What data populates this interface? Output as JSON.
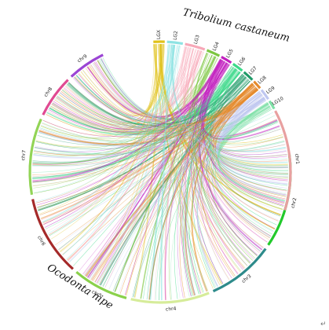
{
  "species": {
    "top": "Tribolium castaneum",
    "bottom": "Ocodonta nipe"
  },
  "segments": [
    {
      "name": "chr9",
      "color": "#9b45d4"
    },
    {
      "name": "chr8",
      "color": "#e04a92"
    },
    {
      "name": "chr7",
      "color": "#92d456"
    },
    {
      "name": "chr6",
      "color": "#a52a2a"
    },
    {
      "name": "chr5",
      "color": "#8ad14b"
    },
    {
      "name": "chr4",
      "color": "#d6ec9a"
    },
    {
      "name": "chr3",
      "color": "#2e8b8b"
    },
    {
      "name": "chr2",
      "color": "#22c92c"
    },
    {
      "name": "chr1",
      "color": "#e8a0a0"
    },
    {
      "name": "LG10",
      "color": "#7de0a6"
    },
    {
      "name": "LG9",
      "color": "#bfc7f0"
    },
    {
      "name": "LG8",
      "color": "#e58a2c"
    },
    {
      "name": "LG7",
      "color": "#1f9a68"
    },
    {
      "name": "LG6",
      "color": "#3cd98a"
    },
    {
      "name": "LG5",
      "color": "#c21fbf"
    },
    {
      "name": "LG4",
      "color": "#7cc63f"
    },
    {
      "name": "LG3",
      "color": "#f7a8b8"
    },
    {
      "name": "LG2",
      "color": "#8ee3e3"
    },
    {
      "name": "LGX",
      "color": "#e0c21a"
    }
  ],
  "corner_glyph": "↵"
}
